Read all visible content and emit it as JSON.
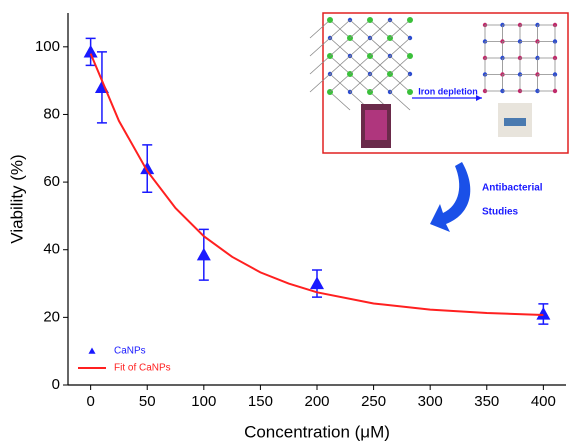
{
  "chart_data": {
    "type": "scatter",
    "x_label": "Concentration (μM)",
    "y_label": "Viability (%)",
    "xlim": [
      -20,
      420
    ],
    "ylim": [
      0,
      110
    ],
    "xticks": [
      0,
      50,
      100,
      150,
      200,
      250,
      300,
      350,
      400
    ],
    "yticks": [
      0,
      20,
      40,
      60,
      80,
      100
    ],
    "legend": "lower left",
    "series": [
      {
        "name": "CaNPs",
        "type": "scatter",
        "color": "#1a1aff",
        "x": [
          0,
          10,
          50,
          100,
          200,
          400
        ],
        "values": [
          98.5,
          88,
          64,
          38.5,
          30,
          21
        ],
        "errors": [
          4,
          10.5,
          7,
          7.5,
          4,
          3
        ]
      },
      {
        "name": "Fit of CaNPs",
        "type": "line",
        "color": "#ff2020",
        "x": [
          0,
          25,
          50,
          75,
          100,
          125,
          150,
          175,
          200,
          250,
          300,
          350,
          400
        ],
        "values": [
          98,
          78.1,
          63.3,
          52.3,
          44,
          37.9,
          33.3,
          30,
          27.4,
          24.1,
          22.3,
          21.3,
          20.7
        ]
      }
    ],
    "annotations": [
      "Iron depletion",
      "Antibacterial",
      "Studies"
    ]
  }
}
